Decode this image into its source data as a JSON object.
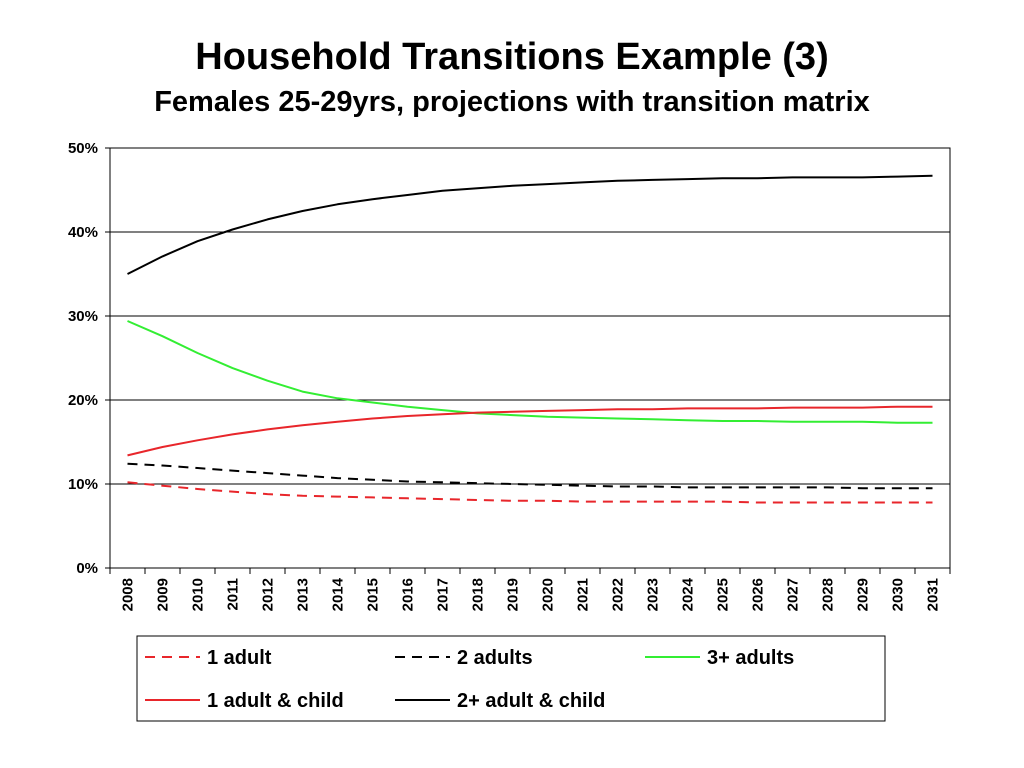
{
  "title": "Household Transitions Example (3)",
  "subtitle": "Females 25-29yrs, projections with transition matrix",
  "chart_data": {
    "type": "line",
    "x": [
      "2008",
      "2009",
      "2010",
      "2011",
      "2012",
      "2013",
      "2014",
      "2015",
      "2016",
      "2017",
      "2018",
      "2019",
      "2020",
      "2021",
      "2022",
      "2023",
      "2024",
      "2025",
      "2026",
      "2027",
      "2028",
      "2029",
      "2030",
      "2031"
    ],
    "ylim": [
      0,
      50
    ],
    "yticks": [
      "0%",
      "10%",
      "20%",
      "30%",
      "40%",
      "50%"
    ],
    "grid": true,
    "legend_position": "bottom",
    "series": [
      {
        "name": "1 adult",
        "color": "#e8262b",
        "style": "dashed",
        "values": [
          10.2,
          9.8,
          9.4,
          9.1,
          8.8,
          8.6,
          8.5,
          8.4,
          8.3,
          8.2,
          8.1,
          8.0,
          8.0,
          7.9,
          7.9,
          7.9,
          7.9,
          7.9,
          7.8,
          7.8,
          7.8,
          7.8,
          7.8,
          7.8
        ]
      },
      {
        "name": "2 adults",
        "color": "#000000",
        "style": "dashed",
        "values": [
          12.4,
          12.2,
          11.9,
          11.6,
          11.3,
          11.0,
          10.7,
          10.5,
          10.3,
          10.2,
          10.1,
          10.0,
          9.9,
          9.8,
          9.7,
          9.7,
          9.6,
          9.6,
          9.6,
          9.6,
          9.6,
          9.5,
          9.5,
          9.5
        ]
      },
      {
        "name": "3+ adults",
        "color": "#33ee33",
        "style": "solid",
        "values": [
          29.4,
          27.6,
          25.6,
          23.8,
          22.3,
          21.0,
          20.2,
          19.7,
          19.2,
          18.8,
          18.4,
          18.2,
          18.0,
          17.9,
          17.8,
          17.7,
          17.6,
          17.5,
          17.5,
          17.4,
          17.4,
          17.4,
          17.3,
          17.3
        ]
      },
      {
        "name": "1 adult & child",
        "color": "#e8262b",
        "style": "solid",
        "values": [
          13.4,
          14.4,
          15.2,
          15.9,
          16.5,
          17.0,
          17.4,
          17.8,
          18.1,
          18.3,
          18.5,
          18.6,
          18.7,
          18.8,
          18.9,
          18.9,
          19.0,
          19.0,
          19.0,
          19.1,
          19.1,
          19.1,
          19.2,
          19.2
        ]
      },
      {
        "name": "2+ adult & child",
        "color": "#000000",
        "style": "solid",
        "values": [
          35.0,
          37.1,
          38.9,
          40.3,
          41.5,
          42.5,
          43.3,
          43.9,
          44.4,
          44.9,
          45.2,
          45.5,
          45.7,
          45.9,
          46.1,
          46.2,
          46.3,
          46.4,
          46.4,
          46.5,
          46.5,
          46.5,
          46.6,
          46.7
        ]
      }
    ]
  }
}
